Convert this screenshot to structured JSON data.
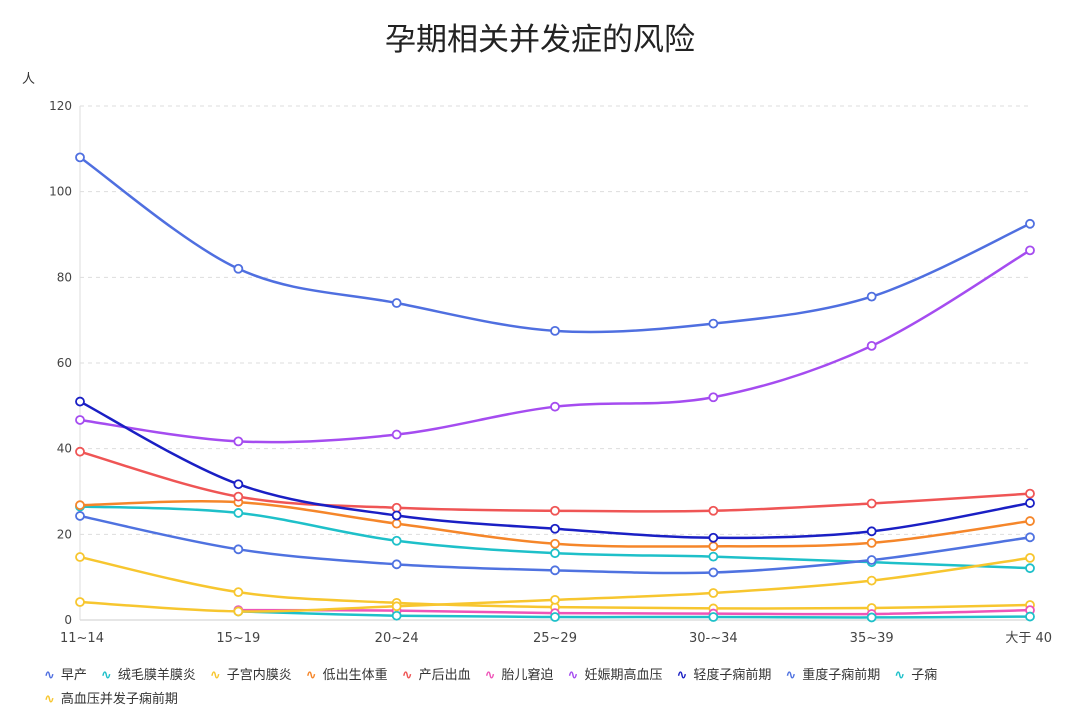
{
  "chart_data": {
    "type": "line",
    "title": "孕期相关并发症的风险",
    "ylabel": "人",
    "ylim": [
      0,
      120
    ],
    "yticks": [
      0,
      20,
      40,
      60,
      80,
      100,
      120
    ],
    "grid": true,
    "smooth": true,
    "legend_position": "bottom",
    "categories": [
      "11~14",
      "15~19",
      "20~24",
      "25~29",
      "30-~34",
      "35~39",
      "大于 40"
    ],
    "series": [
      {
        "name": "早产",
        "color": "#4f6fe0",
        "values": [
          108,
          82,
          74,
          67.5,
          69.2,
          75.5,
          92.5
        ]
      },
      {
        "name": "绒毛膜羊膜炎",
        "color": "#1ec0c9",
        "values": [
          26.5,
          25,
          18.5,
          15.6,
          14.8,
          13.5,
          12.1
        ]
      },
      {
        "name": "子宫内膜炎",
        "color": "#f7c62f",
        "values": [
          14.7,
          6.5,
          4,
          3,
          2.7,
          2.8,
          3.5
        ]
      },
      {
        "name": "低出生体重",
        "color": "#f5862a",
        "values": [
          26.8,
          27.5,
          22.5,
          17.8,
          17.2,
          18,
          23.1
        ]
      },
      {
        "name": "产后出血",
        "color": "#ef5555",
        "values": [
          39.3,
          28.8,
          26.2,
          25.5,
          25.5,
          27.2,
          29.5
        ]
      },
      {
        "name": "胎儿窘迫",
        "color": "#ee55b8",
        "values": [
          null,
          2.3,
          2.2,
          1.6,
          1.5,
          1.4,
          2.3
        ]
      },
      {
        "name": "妊娠期高血压",
        "color": "#a54cf0",
        "values": [
          46.7,
          41.7,
          43.3,
          49.8,
          52,
          64,
          86.3
        ]
      },
      {
        "name": "轻度子痫前期",
        "color": "#1a1fc4",
        "values": [
          51,
          31.7,
          24.4,
          21.3,
          19.2,
          20.7,
          27.3
        ]
      },
      {
        "name": "重度子痫前期",
        "color": "#4f72e0",
        "values": [
          24.3,
          16.5,
          13,
          11.6,
          11.1,
          14,
          19.3
        ]
      },
      {
        "name": "子痫",
        "color": "#1ec0c9",
        "values": [
          null,
          2,
          1,
          0.7,
          0.7,
          0.6,
          0.8
        ]
      },
      {
        "name": "高血压并发子痫前期",
        "color": "#f7c62f",
        "values": [
          4.2,
          2,
          3.2,
          4.7,
          6.3,
          9.2,
          14.5
        ]
      }
    ]
  }
}
